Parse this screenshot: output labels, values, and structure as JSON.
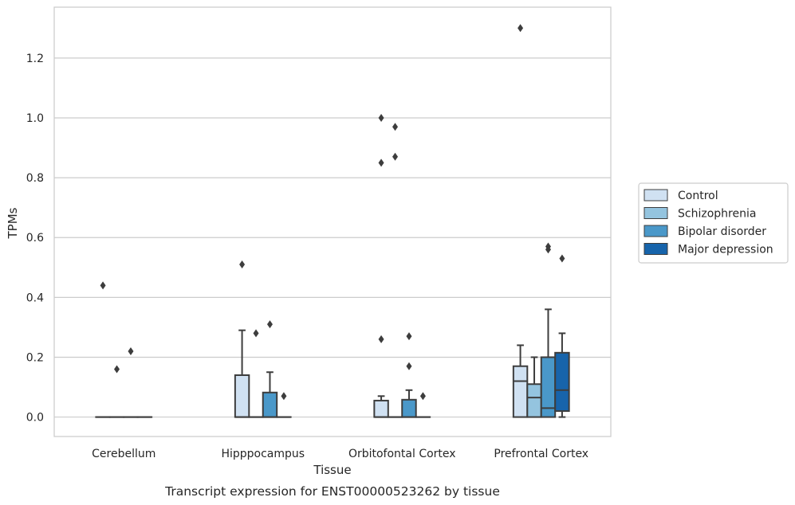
{
  "chart_data": {
    "type": "boxplot",
    "title": "",
    "caption": "Transcript expression for ENST00000523262 by tissue",
    "xlabel": "Tissue",
    "ylabel": "TPMs",
    "ylim": [
      -0.065,
      1.37
    ],
    "yticks": [
      0.0,
      0.2,
      0.4,
      0.6,
      0.8,
      1.0,
      1.2
    ],
    "ytick_labels": [
      "0.0",
      "0.2",
      "0.4",
      "0.6",
      "0.8",
      "1.0",
      "1.2"
    ],
    "grid": "horizontal",
    "legend_position": "right",
    "categories": [
      "Cerebellum",
      "Hipppocampus",
      "Orbitofontal Cortex",
      "Prefrontal Cortex"
    ],
    "series": [
      {
        "name": "Control",
        "color": "#d0e1f2",
        "boxes": [
          {
            "q1": 0,
            "median": 0,
            "q3": 0,
            "whisker_low": 0,
            "whisker_high": 0,
            "outliers": [
              0.44
            ]
          },
          {
            "q1": 0,
            "median": 0,
            "q3": 0.14,
            "whisker_low": 0,
            "whisker_high": 0.29,
            "outliers": [
              0.51
            ]
          },
          {
            "q1": 0,
            "median": 0,
            "q3": 0.055,
            "whisker_low": 0,
            "whisker_high": 0.07,
            "outliers": [
              0.26,
              0.85,
              1.0
            ]
          },
          {
            "q1": 0,
            "median": 0.12,
            "q3": 0.17,
            "whisker_low": 0,
            "whisker_high": 0.24,
            "outliers": [
              1.3
            ]
          }
        ]
      },
      {
        "name": "Schizophrenia",
        "color": "#94c4df",
        "boxes": [
          {
            "q1": 0,
            "median": 0,
            "q3": 0,
            "whisker_low": 0,
            "whisker_high": 0,
            "outliers": [
              0.16
            ]
          },
          {
            "q1": 0,
            "median": 0,
            "q3": 0,
            "whisker_low": 0,
            "whisker_high": 0,
            "outliers": [
              0.28
            ]
          },
          {
            "q1": 0,
            "median": 0,
            "q3": 0,
            "whisker_low": 0,
            "whisker_high": 0,
            "outliers": [
              0.87,
              0.97
            ]
          },
          {
            "q1": 0,
            "median": 0.065,
            "q3": 0.11,
            "whisker_low": 0,
            "whisker_high": 0.2,
            "outliers": []
          }
        ]
      },
      {
        "name": "Bipolar disorder",
        "color": "#4a98c9",
        "boxes": [
          {
            "q1": 0,
            "median": 0,
            "q3": 0,
            "whisker_low": 0,
            "whisker_high": 0,
            "outliers": [
              0.22
            ]
          },
          {
            "q1": 0,
            "median": 0,
            "q3": 0.082,
            "whisker_low": 0,
            "whisker_high": 0.15,
            "outliers": [
              0.31
            ]
          },
          {
            "q1": 0,
            "median": 0,
            "q3": 0.058,
            "whisker_low": 0,
            "whisker_high": 0.09,
            "outliers": [
              0.17,
              0.27
            ]
          },
          {
            "q1": 0,
            "median": 0.03,
            "q3": 0.2,
            "whisker_low": 0,
            "whisker_high": 0.36,
            "outliers": [
              0.56,
              0.57
            ]
          }
        ]
      },
      {
        "name": "Major depression",
        "color": "#1764ab",
        "boxes": [
          {
            "q1": 0,
            "median": 0,
            "q3": 0,
            "whisker_low": 0,
            "whisker_high": 0,
            "outliers": []
          },
          {
            "q1": 0,
            "median": 0,
            "q3": 0,
            "whisker_low": 0,
            "whisker_high": 0,
            "outliers": [
              0.07
            ]
          },
          {
            "q1": 0,
            "median": 0,
            "q3": 0,
            "whisker_low": 0,
            "whisker_high": 0,
            "outliers": [
              0.07
            ]
          },
          {
            "q1": 0.02,
            "median": 0.09,
            "q3": 0.215,
            "whisker_low": 0,
            "whisker_high": 0.28,
            "outliers": [
              0.53
            ]
          }
        ]
      }
    ]
  }
}
